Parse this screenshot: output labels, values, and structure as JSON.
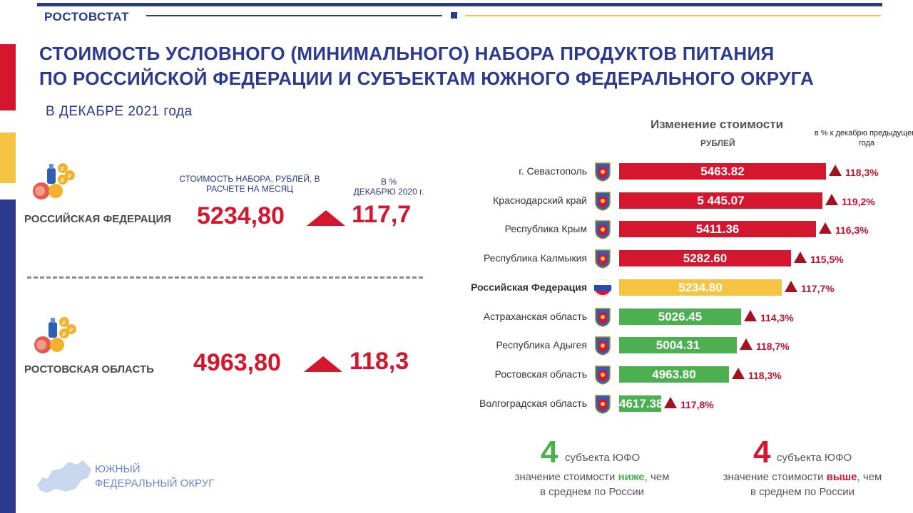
{
  "header": {
    "brand": "РОСТОВСТАТ",
    "title_line1": "СТОИМОСТЬ УСЛОВНОГО (МИНИМАЛЬНОГО) НАБОРА ПРОДУКТОВ ПИТАНИЯ",
    "title_line2": "ПО РОССИЙСКОЙ ФЕДЕРАЦИИ И СУБЪЕКТАМ ЮЖНОГО ФЕДЕРАЛЬНОГО ОКРУГА",
    "subtitle": "В ДЕКАБРЕ 2021 года"
  },
  "colors": {
    "brand_blue": "#2b3a8c",
    "accent_red": "#d4162f",
    "accent_yellow": "#f5c443",
    "bar_red": "#d4162f",
    "bar_yellow": "#f5c443",
    "bar_green": "#4caf50"
  },
  "left_panel": {
    "col_cost": "СТОИМОСТЬ НАБОРА, РУБЛЕЙ, В РАСЧЕТЕ НА МЕСЯЦ",
    "col_pct_line1": "В %",
    "col_pct_line2": "ДЕКАБРЮ 2020 г.",
    "rows": [
      {
        "name": "РОССИЙСКАЯ ФЕДЕРАЦИЯ",
        "value": "5234,80",
        "pct": "117,7",
        "icon": "food-basket-icon",
        "trend_icon": "triangle-up-icon"
      },
      {
        "name": "РОСТОВСКАЯ ОБЛАСТЬ",
        "value": "4963,80",
        "pct": "118,3",
        "icon": "food-basket-icon",
        "trend_icon": "triangle-up-icon"
      }
    ],
    "map_label_line1": "ЮЖНЫЙ",
    "map_label_line2": "ФЕДЕРАЛЬНЫЙ ОКРУГ",
    "map_icon": "region-map-icon"
  },
  "chart_data": {
    "type": "bar",
    "title": "Изменение стоимости",
    "unit": "РУБЛЕЙ",
    "pct_header": "в % к декабрю предыдущего года",
    "orientation": "horizontal",
    "categories": [
      "г. Севастополь",
      "Краснодарский край",
      "Республика Крым",
      "Республика Калмыкия",
      "Российская Федерация",
      "Астраханская область",
      "Республика Адыгея",
      "Ростовская область",
      "Волгоградская область"
    ],
    "values": [
      5463.82,
      5445.07,
      5411.36,
      5282.6,
      5234.8,
      5026.45,
      5004.31,
      4963.8,
      4617.38
    ],
    "value_labels": [
      "5463.82",
      "5 445.07",
      "5411.36",
      "5282.60",
      "5234.80",
      "5026.45",
      "5004.31",
      "4963.80",
      "4617.38"
    ],
    "pct_labels": [
      "118,3%",
      "119,2%",
      "116,3%",
      "115,5%",
      "117,7%",
      "114,3%",
      "118,7%",
      "118,3%",
      "117,8%"
    ],
    "bar_colors": [
      "red",
      "red",
      "red",
      "red",
      "yellow",
      "green",
      "green",
      "green",
      "green"
    ],
    "flag_icons": [
      "sevastopol-coat-of-arms-icon",
      "krasnodar-coat-of-arms-icon",
      "crimea-coat-of-arms-icon",
      "kalmykia-coat-of-arms-icon",
      "russia-flag-icon",
      "astrakhan-coat-of-arms-icon",
      "adygea-coat-of-arms-icon",
      "rostov-coat-of-arms-icon",
      "volgograd-coat-of-arms-icon"
    ],
    "highlighted": "Российская Федерация"
  },
  "footer": {
    "left_num": "4",
    "left_unit": "субъекта ЮФО",
    "left_desc_pre": "значение  стоимости ",
    "left_desc_em": "ниже",
    "left_desc_post": ", чем",
    "left_desc_line2": "в среднем по России",
    "right_num": "4",
    "right_unit": "субъекта ЮФО",
    "right_desc_pre": "значение  стоимости ",
    "right_desc_em": "выше",
    "right_desc_post": ", чем",
    "right_desc_line2": "в среднем по России"
  }
}
